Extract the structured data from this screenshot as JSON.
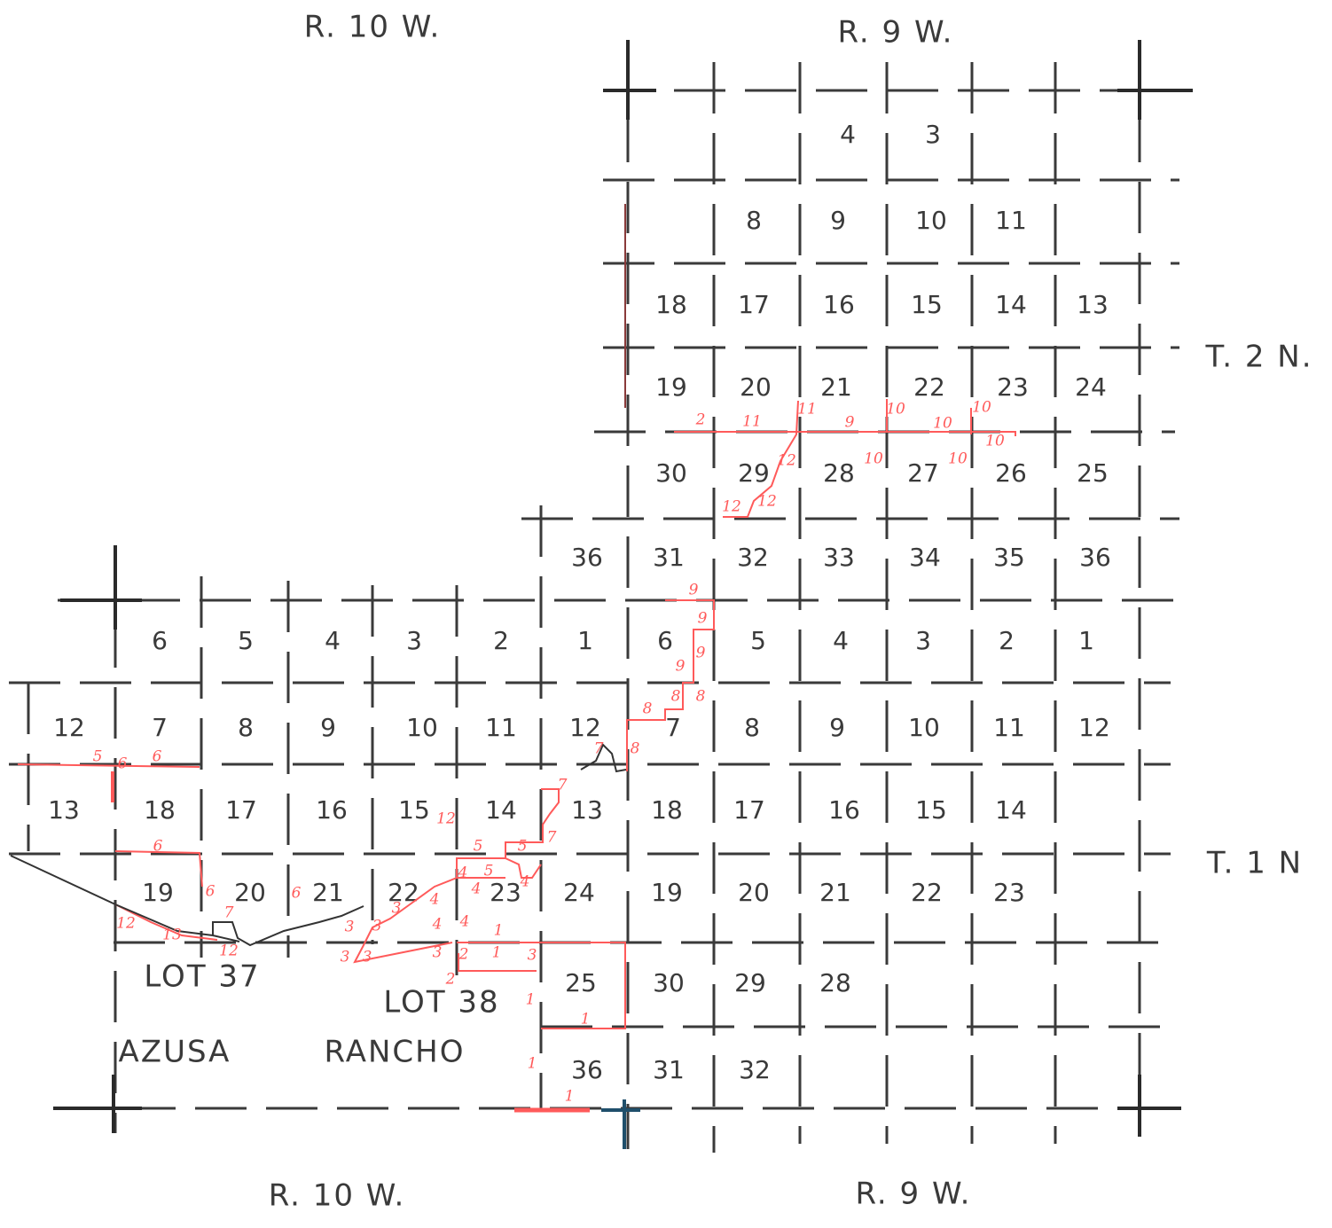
{
  "labels": {
    "range_top_left": "R. 10 W.",
    "range_top_right": "R. 9 W.",
    "range_bottom_left": "R. 10 W.",
    "range_bottom_right": "R. 9 W.",
    "township_2n": "T. 2 N.",
    "township_1n": "T. 1 N",
    "lot_37": "LOT 37",
    "lot_38": "LOT 38",
    "azusa": "AZUSA",
    "rancho": "RANCHO"
  },
  "sections": [
    [
      "4",
      "3"
    ],
    [
      "8",
      "9",
      "10",
      "11"
    ],
    [
      "18",
      "17",
      "16",
      "15",
      "14",
      "13"
    ],
    [
      "19",
      "20",
      "21",
      "22",
      "23",
      "24"
    ],
    [
      "30",
      "29",
      "28",
      "27",
      "26",
      "25"
    ],
    [
      "36",
      "31",
      "32",
      "33",
      "34",
      "35",
      "36"
    ],
    [
      "6",
      "5",
      "4",
      "3",
      "2",
      "1",
      "6",
      "5",
      "4",
      "3",
      "2",
      "1"
    ],
    [
      "12",
      "7",
      "8",
      "9",
      "10",
      "11",
      "12",
      "7",
      "8",
      "9",
      "10",
      "11",
      "12"
    ],
    [
      "13",
      "18",
      "17",
      "16",
      "15",
      "14",
      "13",
      "18",
      "17",
      "16",
      "15",
      "14"
    ],
    [
      "19",
      "20",
      "21",
      "22",
      "23",
      "24",
      "19",
      "20",
      "21",
      "22",
      "23"
    ],
    [
      "25",
      "30",
      "29",
      "28"
    ],
    [
      "36",
      "31",
      "32"
    ]
  ],
  "corner_marks": [
    "2",
    "11",
    "11",
    "9",
    "10",
    "10",
    "10",
    "10",
    "12",
    "10",
    "10",
    "12",
    "12",
    "9",
    "9",
    "9",
    "9",
    "8",
    "8",
    "8",
    "8",
    "7",
    "7",
    "7",
    "5",
    "5",
    "5",
    "6",
    "6",
    "6",
    "6",
    "6",
    "7",
    "12",
    "12",
    "13",
    "12",
    "4",
    "5",
    "4",
    "4",
    "4",
    "4",
    "3",
    "3",
    "4",
    "3",
    "3",
    "3",
    "3",
    "2",
    "2",
    "3",
    "1",
    "1",
    "1",
    "1",
    "1",
    "1",
    "5",
    "2"
  ],
  "colors": {
    "grid": "#3a3a3a",
    "survey_marks": "#ff5a5a",
    "corner_accent": "#1f4f6b"
  }
}
